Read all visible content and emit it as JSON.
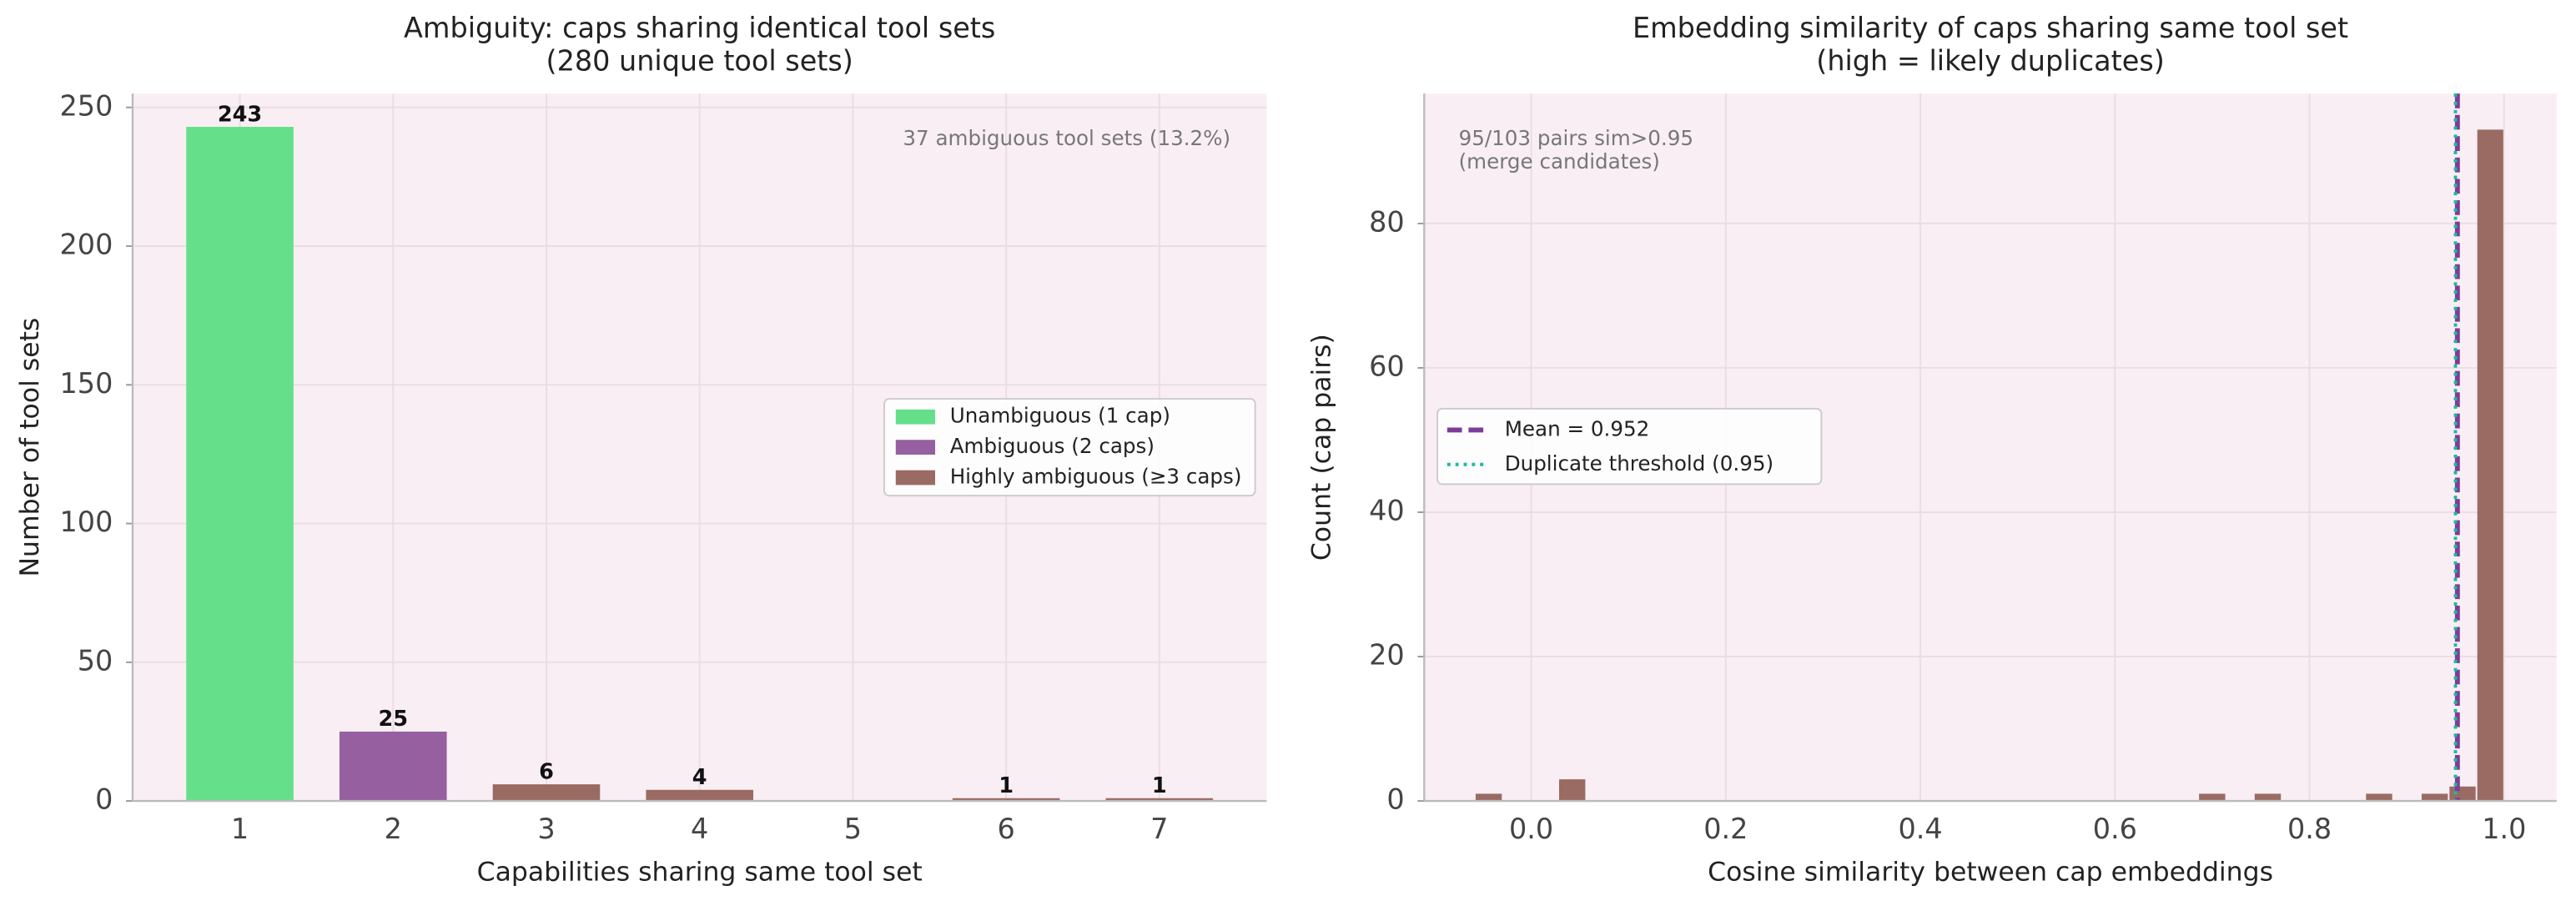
{
  "chart_data": [
    {
      "type": "bar",
      "title": [
        "Ambiguity: caps sharing identical tool sets",
        "(280 unique tool sets)"
      ],
      "x_label": "Capabilities sharing same tool set",
      "y_label": "Number of tool sets",
      "categories": [
        "1",
        "2",
        "3",
        "4",
        "5",
        "6",
        "7"
      ],
      "series": [
        {
          "name": "Unambiguous (1 cap)",
          "color": "#66df8a",
          "values": [
            243,
            null,
            null,
            null,
            null,
            null,
            null
          ]
        },
        {
          "name": "Ambiguous (2 caps)",
          "color": "#955fa0",
          "values": [
            null,
            25,
            null,
            null,
            null,
            null,
            null
          ]
        },
        {
          "name": "Highly ambiguous (≥3 caps)",
          "color": "#9a6b63",
          "values": [
            null,
            null,
            6,
            4,
            0,
            1,
            1
          ]
        }
      ],
      "annotation": "37 ambiguous tool sets (13.2%)",
      "ylim": [
        0,
        255
      ],
      "yticks": [
        0,
        50,
        100,
        150,
        200,
        250
      ],
      "grid": true,
      "legend": "center right"
    },
    {
      "type": "histogram",
      "title": [
        "Embedding similarity of caps sharing same tool set",
        "(high = likely duplicates)"
      ],
      "x_label": "Cosine similarity between cap embeddings",
      "y_label": "Count (cap pairs)",
      "bins": [
        -0.058,
        -0.0294,
        -0.0008,
        0.0278,
        0.0564,
        0.085,
        0.1136,
        0.1422,
        0.1708,
        0.1994,
        0.228,
        0.2566,
        0.2852,
        0.3138,
        0.3424,
        0.371,
        0.3996,
        0.4282,
        0.4568,
        0.4854,
        0.514,
        0.5426,
        0.5712,
        0.5998,
        0.6284,
        0.657,
        0.6856,
        0.7142,
        0.7428,
        0.7714,
        0.8,
        0.8286,
        0.8572,
        0.8858,
        0.9144,
        0.943,
        0.9716,
        1.0
      ],
      "values": [
        1,
        0,
        0,
        3,
        0,
        0,
        0,
        0,
        0,
        0,
        0,
        0,
        0,
        0,
        0,
        0,
        0,
        0,
        0,
        0,
        0,
        0,
        0,
        0,
        0,
        0,
        1,
        0,
        1,
        0,
        0,
        0,
        1,
        0,
        1,
        2,
        93
      ],
      "color": "#9a6b63",
      "lines": [
        {
          "name": "Mean = 0.952",
          "value": 0.952,
          "color": "#7d3c98",
          "style": "dashed"
        },
        {
          "name": "Duplicate threshold (0.95)",
          "value": 0.95,
          "color": "#1abc9c",
          "style": "dotted"
        }
      ],
      "annotation": [
        "95/103 pairs sim>0.95",
        "(merge candidates)"
      ],
      "xlim": [
        -0.11,
        1.054
      ],
      "xticks": [
        {
          "value": 0,
          "label": "0.0"
        },
        {
          "value": 0.2,
          "label": "0.2"
        },
        {
          "value": 0.4,
          "label": "0.4"
        },
        {
          "value": 0.6,
          "label": "0.6"
        },
        {
          "value": 0.8,
          "label": "0.8"
        },
        {
          "value": 1,
          "label": "1.0"
        }
      ],
      "ylim": [
        0,
        98
      ],
      "yticks": [
        0,
        20,
        40,
        60,
        80
      ],
      "grid": true,
      "legend": "center left"
    }
  ]
}
